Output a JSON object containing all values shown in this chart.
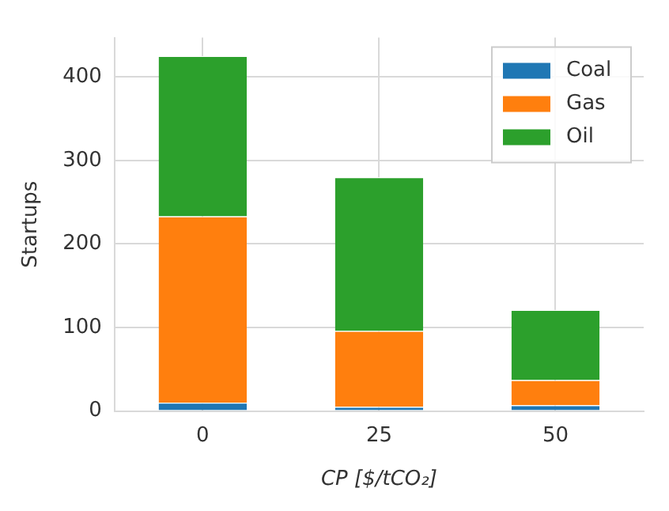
{
  "chart_data": {
    "type": "bar",
    "stacked": true,
    "xlabel": "CP [$/tCO₂]",
    "ylabel": "Startups",
    "categories": [
      "0",
      "25",
      "50"
    ],
    "series": [
      {
        "name": "Coal",
        "color": "#1f77b4",
        "values": [
          10,
          5,
          7
        ]
      },
      {
        "name": "Gas",
        "color": "#ff7f0e",
        "values": [
          223,
          91,
          30
        ]
      },
      {
        "name": "Oil",
        "color": "#2ca02c",
        "values": [
          192,
          184,
          84
        ]
      }
    ],
    "ylim": [
      0,
      447
    ],
    "yticks": [
      0,
      100,
      200,
      300,
      400
    ],
    "grid": true,
    "legend": "top right"
  }
}
